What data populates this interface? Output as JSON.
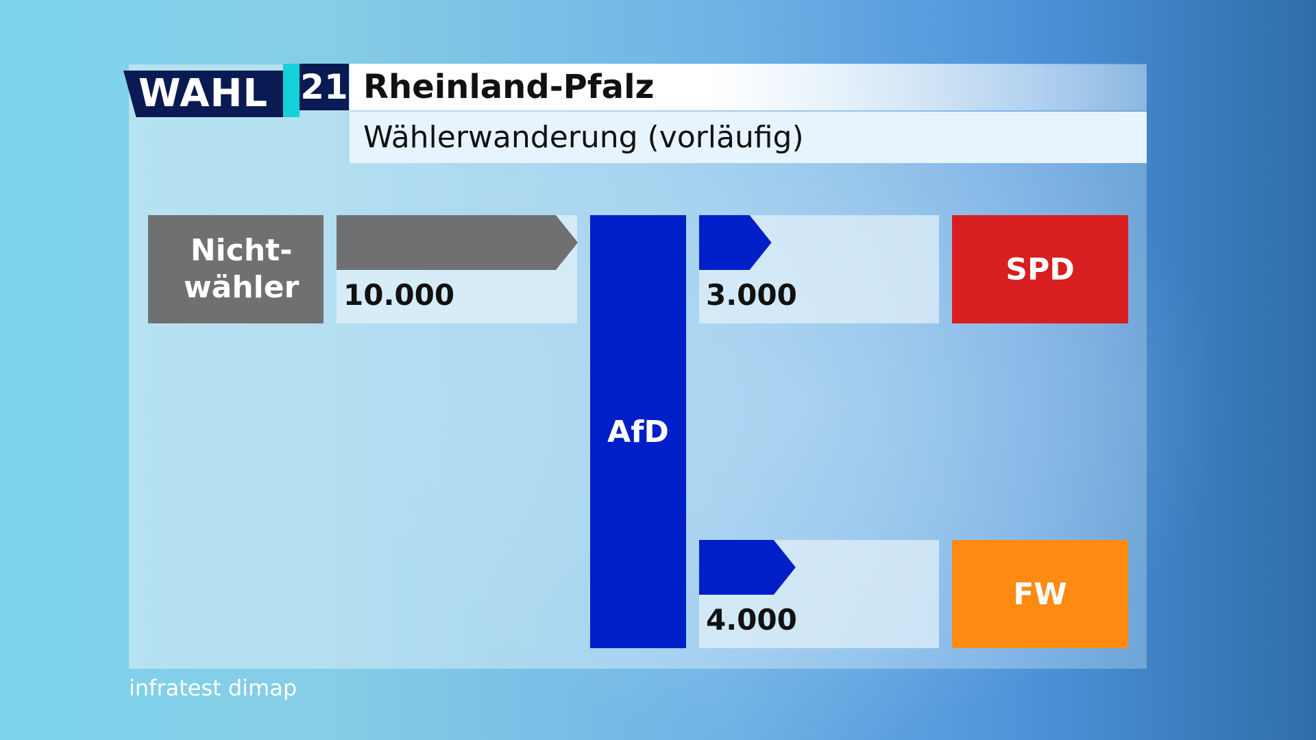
{
  "header": {
    "logo_word": "WAHL",
    "logo_number": "21",
    "title": "Rheinland-Pfalz",
    "subtitle": "Wählerwanderung (vorläufig)"
  },
  "colors": {
    "nichtwaehler": "#6f7072",
    "afd": "#001fc8",
    "spd": "#d81e1e",
    "fw": "#ff8a14"
  },
  "chart_data": {
    "type": "bar",
    "title": "Rheinland-Pfalz",
    "subtitle": "Wählerwanderung (vorläufig)",
    "center": "AfD",
    "flows": [
      {
        "from": "Nicht-wähler",
        "to": "AfD",
        "value": 10000,
        "label": "10.000"
      },
      {
        "from": "AfD",
        "to": "SPD",
        "value": 3000,
        "label": "3.000"
      },
      {
        "from": "AfD",
        "to": "FW",
        "value": 4000,
        "label": "4.000"
      }
    ],
    "parties": {
      "nichtwaehler": "Nicht-wähler",
      "afd": "AfD",
      "spd": "SPD",
      "fw": "FW"
    }
  },
  "source": "infratest dimap"
}
